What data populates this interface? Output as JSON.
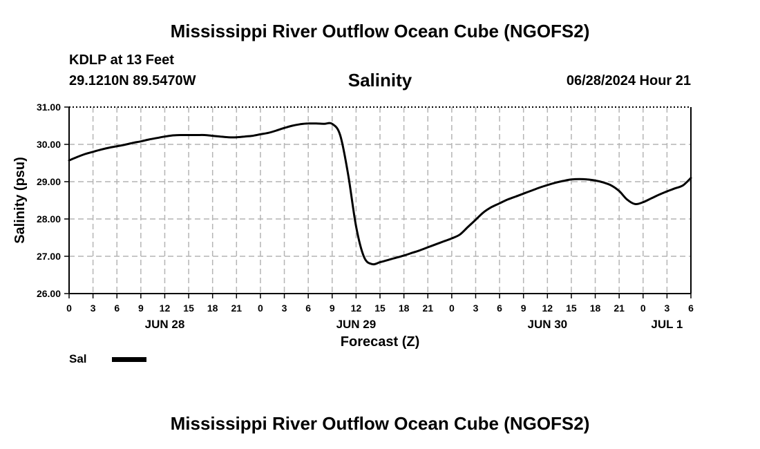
{
  "header": {
    "title": "Mississippi River Outflow Ocean Cube (NGOFS2)",
    "station": "KDLP at 13 Feet",
    "coordinates": "29.1210N  89.5470W",
    "variable": "Salinity",
    "datetime": "06/28/2024 Hour 21"
  },
  "footer": {
    "title": "Mississippi River Outflow Ocean Cube (NGOFS2)"
  },
  "legend": {
    "label": "Sal"
  },
  "chart_data": {
    "type": "line",
    "title": "Salinity",
    "xlabel": "Forecast (Z)",
    "ylabel": "Salinity (psu)",
    "xlim_hours": [
      0,
      78
    ],
    "ylim": [
      26.0,
      31.0
    ],
    "yticks": [
      "26.00",
      "27.00",
      "28.00",
      "29.00",
      "30.00",
      "31.00"
    ],
    "xtick_step_hours": 3,
    "xtick_labels": [
      "0",
      "3",
      "6",
      "9",
      "12",
      "15",
      "18",
      "21",
      "0",
      "3",
      "6",
      "9",
      "12",
      "15",
      "18",
      "21",
      "0",
      "3",
      "6",
      "9",
      "12",
      "15",
      "18",
      "21",
      "0",
      "3",
      "6"
    ],
    "date_labels": [
      {
        "label": "JUN 28",
        "hour": 12
      },
      {
        "label": "JUN 29",
        "hour": 36
      },
      {
        "label": "JUN 30",
        "hour": 60
      },
      {
        "label": "JUL 1",
        "hour": 75
      }
    ],
    "grid": true,
    "series": [
      {
        "name": "Sal",
        "color": "#000000",
        "x": [
          0,
          1,
          2,
          3,
          4,
          5,
          6,
          7,
          8,
          9,
          10,
          11,
          12,
          13,
          14,
          15,
          16,
          17,
          18,
          19,
          20,
          21,
          22,
          23,
          24,
          25,
          26,
          27,
          28,
          29,
          30,
          31,
          32,
          33,
          34,
          35,
          36,
          37,
          38,
          39,
          40,
          41,
          42,
          43,
          44,
          45,
          46,
          47,
          48,
          49,
          50,
          51,
          52,
          53,
          54,
          55,
          56,
          57,
          58,
          59,
          60,
          61,
          62,
          63,
          64,
          65,
          66,
          67,
          68,
          69,
          70,
          71,
          72,
          73,
          74,
          75,
          76,
          77,
          78
        ],
        "values": [
          29.57,
          29.66,
          29.74,
          29.8,
          29.86,
          29.91,
          29.95,
          29.99,
          30.04,
          30.08,
          30.13,
          30.17,
          30.21,
          30.24,
          30.25,
          30.25,
          30.25,
          30.25,
          30.23,
          30.21,
          30.19,
          30.19,
          30.21,
          30.23,
          30.27,
          30.31,
          30.37,
          30.44,
          30.5,
          30.54,
          30.56,
          30.56,
          30.55,
          30.55,
          30.25,
          29.2,
          27.8,
          26.98,
          26.79,
          26.84,
          26.9,
          26.96,
          27.02,
          27.09,
          27.16,
          27.24,
          27.32,
          27.4,
          27.48,
          27.58,
          27.78,
          27.98,
          28.18,
          28.32,
          28.42,
          28.52,
          28.6,
          28.68,
          28.76,
          28.84,
          28.91,
          28.97,
          29.02,
          29.06,
          29.07,
          29.06,
          29.03,
          28.98,
          28.9,
          28.75,
          28.52,
          28.4,
          28.45,
          28.55,
          28.65,
          28.74,
          28.82,
          28.9,
          29.1
        ]
      }
    ]
  }
}
